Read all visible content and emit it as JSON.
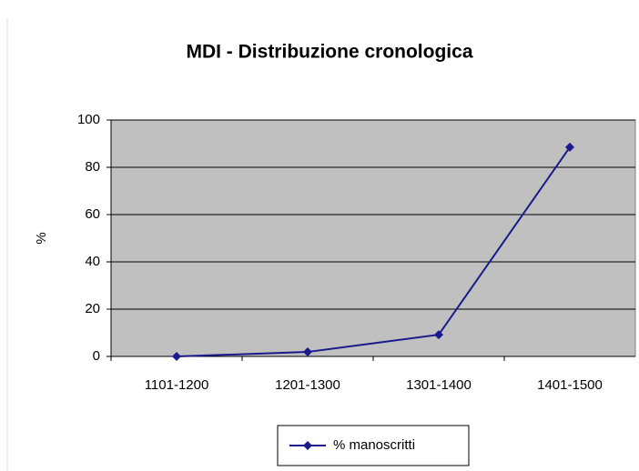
{
  "chart_data": {
    "type": "line",
    "title": "MDI - Distribuzione cronologica",
    "y_label": "%",
    "categories": [
      "1101-1200",
      "1201-1300",
      "1301-1400",
      "1401-1500"
    ],
    "series": [
      {
        "name": "% manoscritti",
        "color": "#1a1a8c",
        "values": [
          0,
          1.9,
          9.2,
          88.5
        ]
      }
    ],
    "ylim": [
      0,
      100
    ],
    "yticks": [
      0,
      20,
      40,
      60,
      80,
      100
    ],
    "grid": true,
    "legend": "bottom"
  }
}
